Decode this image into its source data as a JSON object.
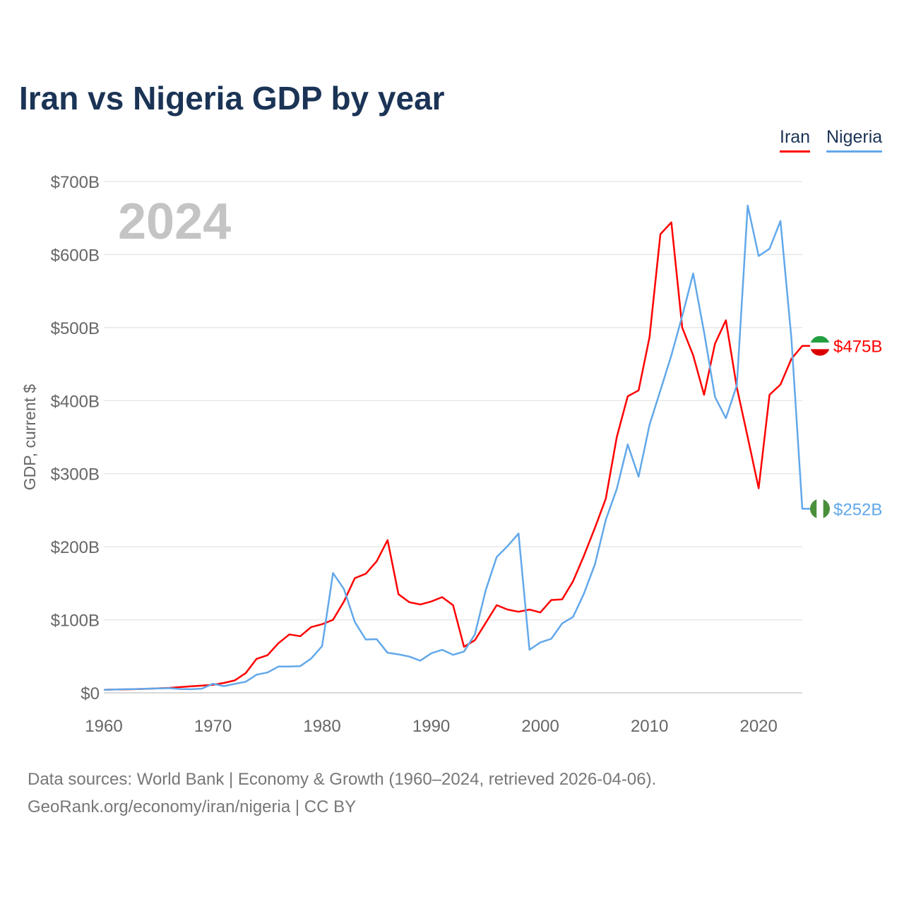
{
  "chart_data": {
    "type": "line",
    "title": "Iran vs Nigeria GDP by year",
    "watermark_year": "2024",
    "xlabel": "",
    "ylabel": "GDP, current $",
    "xlim": [
      1960,
      2024
    ],
    "ylim": [
      0,
      700
    ],
    "x_ticks": [
      "1960",
      "1970",
      "1980",
      "1990",
      "2000",
      "2010",
      "2020"
    ],
    "y_ticks": [
      "$0",
      "$100B",
      "$200B",
      "$300B",
      "$400B",
      "$500B",
      "$600B",
      "$700B"
    ],
    "grid": true,
    "legend_position": "top-right",
    "x": [
      1960,
      1961,
      1962,
      1963,
      1964,
      1965,
      1966,
      1967,
      1968,
      1969,
      1970,
      1971,
      1972,
      1973,
      1974,
      1975,
      1976,
      1977,
      1978,
      1979,
      1980,
      1981,
      1982,
      1983,
      1984,
      1985,
      1986,
      1987,
      1988,
      1989,
      1990,
      1991,
      1992,
      1993,
      1994,
      1995,
      1996,
      1997,
      1998,
      1999,
      2000,
      2001,
      2002,
      2003,
      2004,
      2005,
      2006,
      2007,
      2008,
      2009,
      2010,
      2011,
      2012,
      2013,
      2014,
      2015,
      2016,
      2017,
      2018,
      2019,
      2020,
      2021,
      2022,
      2023,
      2024
    ],
    "series": [
      {
        "name": "Iran",
        "color": "#ff0000",
        "end_label": "$475B",
        "values": [
          4.2,
          4.5,
          4.7,
          5,
          5.6,
          6.2,
          6.8,
          7.8,
          9,
          10,
          11,
          13.5,
          17,
          27,
          46.5,
          51.5,
          68,
          80,
          77.5,
          90,
          94,
          100,
          125,
          157,
          163,
          180,
          209,
          135,
          124,
          121,
          125,
          131,
          120,
          63,
          72,
          96,
          120,
          114,
          111,
          114,
          110,
          127,
          128,
          153,
          188,
          226,
          266,
          350,
          406,
          414,
          487,
          628,
          644,
          500,
          462,
          408,
          478,
          510,
          418,
          350,
          280,
          408,
          422,
          457,
          475
        ]
      },
      {
        "name": "Nigeria",
        "color": "#62a8ea",
        "end_label": "$252B",
        "values": [
          4.2,
          4.5,
          4.9,
          5.2,
          5.7,
          6,
          6.4,
          5.2,
          4.9,
          5.8,
          12.5,
          9.2,
          12.3,
          15.2,
          24.8,
          27.8,
          36,
          36,
          36.5,
          47,
          64,
          164,
          142,
          97,
          73,
          73.5,
          54.8,
          52.7,
          49.6,
          44,
          54,
          59,
          52,
          56.5,
          80,
          141,
          186,
          201,
          218,
          59,
          69,
          74,
          95,
          104,
          136,
          176,
          237,
          279,
          340,
          296,
          367,
          414,
          462,
          516,
          574,
          494,
          405,
          376,
          421,
          667,
          598,
          608,
          646,
          486,
          252
        ]
      }
    ]
  },
  "source": {
    "line1": "Data sources: World Bank | Economy & Growth (1960–2024, retrieved 2026-04-06).",
    "line2": "GeoRank.org/economy/iran/nigeria | CC BY"
  }
}
